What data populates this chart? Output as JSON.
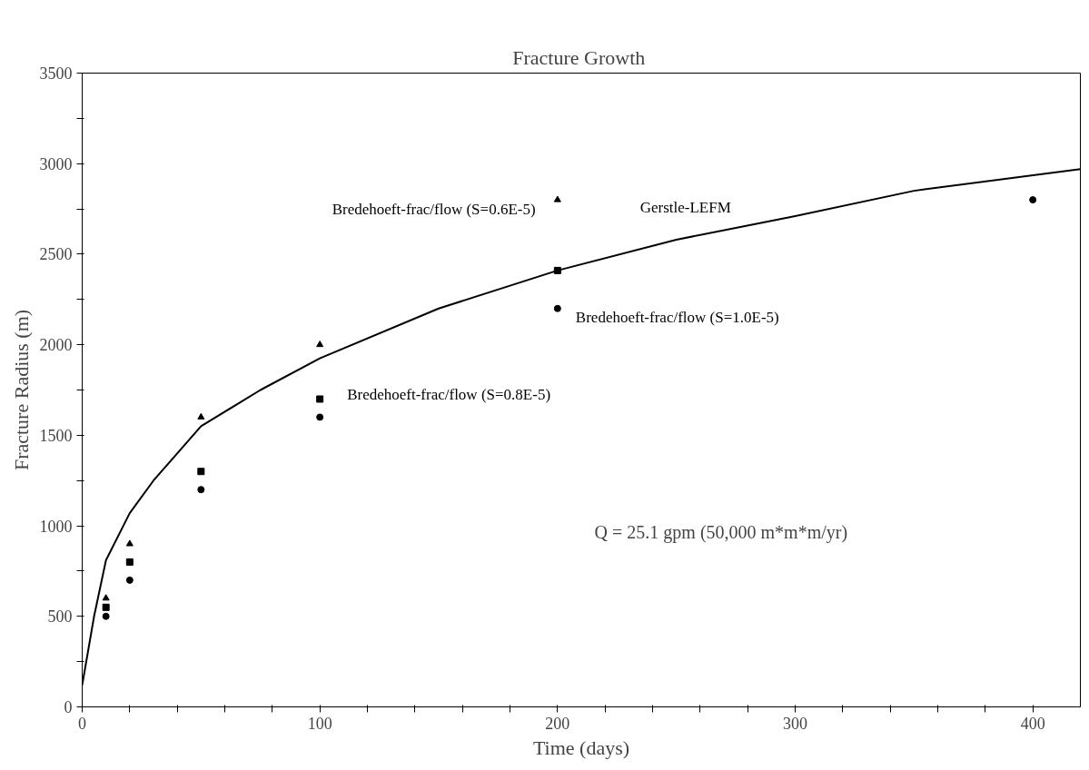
{
  "chart_data": {
    "type": "scatter",
    "title": "Fracture  Growth",
    "xlabel": "Time (days)",
    "ylabel": "Fracture Radius (m)",
    "xlim": [
      0,
      420
    ],
    "ylim": [
      0,
      3500
    ],
    "xticks": [
      0,
      {
        "value": 20,
        "label": null
      },
      {
        "value": 40,
        "label": null
      },
      {
        "value": 60,
        "label": null
      },
      {
        "value": 80,
        "label": null
      },
      100,
      {
        "value": 120,
        "label": null
      },
      {
        "value": 140,
        "label": null
      },
      {
        "value": 160,
        "label": null
      },
      {
        "value": 180,
        "label": null
      },
      200,
      {
        "value": 220,
        "label": null
      },
      {
        "value": 240,
        "label": null
      },
      {
        "value": 260,
        "label": null
      },
      {
        "value": 280,
        "label": null
      },
      300,
      {
        "value": 320,
        "label": null
      },
      {
        "value": 340,
        "label": null
      },
      {
        "value": 360,
        "label": null
      },
      {
        "value": 380,
        "label": null
      },
      400
    ],
    "yticks": [
      0,
      {
        "value": 250,
        "label": null
      },
      500,
      {
        "value": 750,
        "label": null
      },
      1000,
      {
        "value": 1250,
        "label": null
      },
      1500,
      {
        "value": 1750,
        "label": null
      },
      2000,
      {
        "value": 2250,
        "label": null
      },
      2500,
      {
        "value": 2750,
        "label": null
      },
      3000,
      {
        "value": 3250,
        "label": null
      },
      3500
    ],
    "grid": false,
    "series": [
      {
        "name": "Bredehoeft-frac/flow  (S=0.6E-5)",
        "marker": "triangle",
        "color": "#000000",
        "x": [
          10,
          20,
          50,
          100,
          200
        ],
        "values": [
          600,
          900,
          1600,
          2000,
          2800
        ]
      },
      {
        "name": "Bredehoeft-frac/flow  (S=0.8E-5)",
        "marker": "square",
        "color": "#000000",
        "x": [
          10,
          20,
          50,
          100,
          200
        ],
        "values": [
          550,
          800,
          1300,
          1700,
          2410
        ]
      },
      {
        "name": "Bredehoeft-frac/flow  (S=1.0E-5)",
        "marker": "circle",
        "color": "#000000",
        "x": [
          10,
          20,
          50,
          100,
          200,
          400
        ],
        "values": [
          500,
          700,
          1200,
          1600,
          2200,
          2800
        ]
      },
      {
        "name": "Gerstle-LEFM",
        "type": "line",
        "marker": "none",
        "line_style": "solid",
        "color": "#000000",
        "x": [
          0,
          5,
          10,
          20,
          30,
          50,
          75,
          100,
          150,
          200,
          250,
          300,
          350,
          420
        ],
        "values": [
          120,
          500,
          810,
          1070,
          1250,
          1550,
          1750,
          1925,
          2200,
          2410,
          2580,
          2710,
          2850,
          2970
        ]
      }
    ],
    "annotations": [
      "Q = 25.1 gpm (50,000 m*m*m/yr)"
    ]
  }
}
